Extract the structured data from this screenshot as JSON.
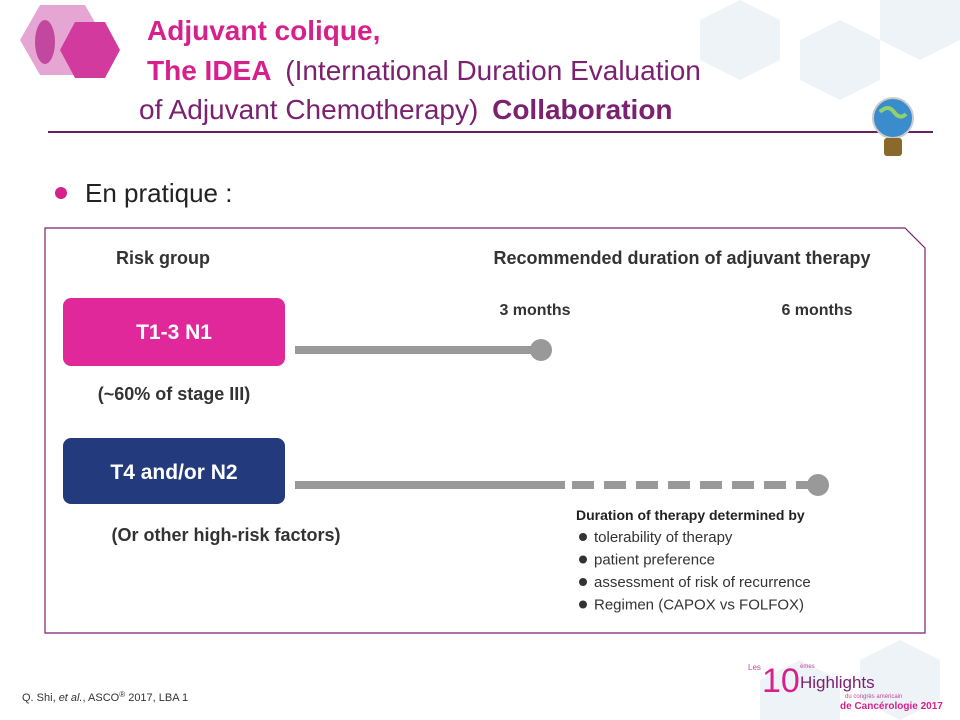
{
  "title": {
    "line1": "Adjuvant colique,",
    "line2": {
      "bold": "The IDEA",
      "normal": "(International Duration Evaluation"
    },
    "line3": {
      "normal": "of Adjuvant Chemotherapy)",
      "bold": "Collaboration"
    }
  },
  "bullet": "En pratique :",
  "diagram": {
    "column_headers": [
      "Risk group",
      "Recommended duration of adjuvant therapy"
    ],
    "durations": [
      "3 months",
      "6 months"
    ],
    "groups": [
      {
        "label": "T1-3 N1",
        "note": "(~60% of stage III)"
      },
      {
        "label": "T4 and/or N2",
        "note": "(Or other high-risk factors)"
      }
    ],
    "factors": {
      "heading": "Duration of therapy determined by",
      "items": [
        "tolerability of therapy",
        "patient preference",
        "assessment of risk of recurrence",
        "Regimen (CAPOX vs FOLFOX)"
      ]
    }
  },
  "footer": {
    "citation": [
      "Q. Shi, ",
      "et al.",
      ", ASCO",
      "®",
      " 2017, LBA 1"
    ],
    "logo": {
      "prefix": "Les",
      "number": "10",
      "suffix": "èmes",
      "name": "Highlights",
      "line1": "du congrès américain",
      "line2": "de Cancérologie 2017"
    }
  }
}
